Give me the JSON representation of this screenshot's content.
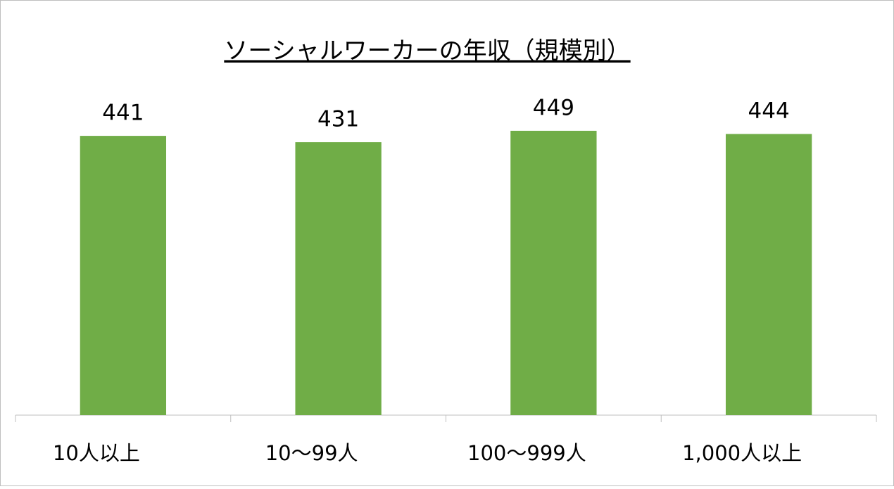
{
  "chart_data": {
    "type": "bar",
    "title": "ソーシャルワーカーの年収（規模別）",
    "categories": [
      "10人以上",
      "10〜99人",
      "100〜999人",
      "1,000人以上"
    ],
    "values": [
      441,
      431,
      449,
      444
    ],
    "color": "#70ad47",
    "ylim": [
      0,
      500
    ]
  }
}
